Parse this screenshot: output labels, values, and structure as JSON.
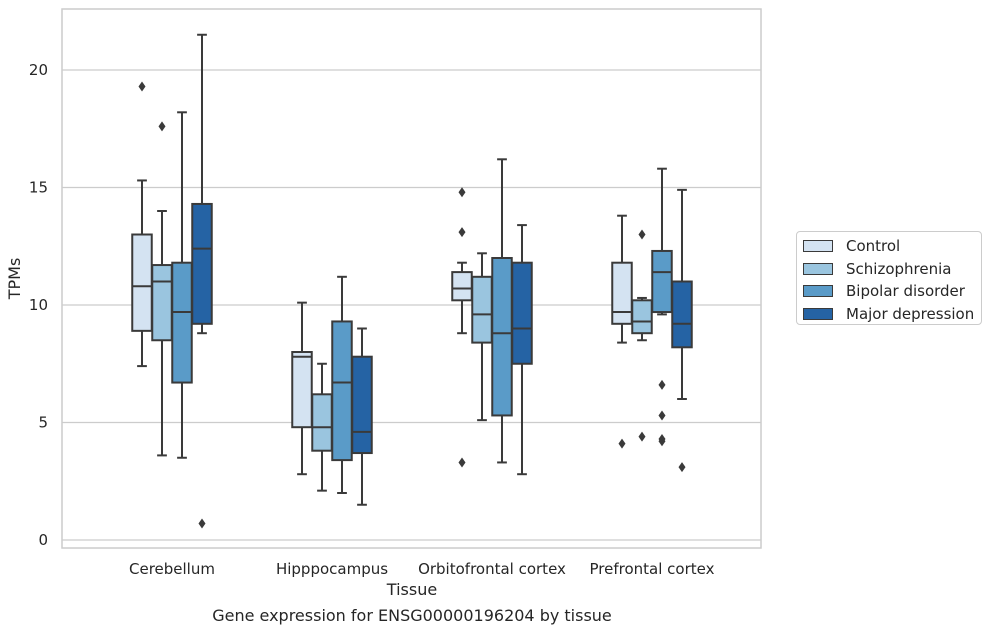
{
  "caption": "Gene expression for ENSG00000196204 by tissue",
  "chart_data": {
    "type": "boxplot",
    "xlabel": "Tissue",
    "ylabel": "TPMs",
    "ylim": [
      -0.3,
      22.4
    ],
    "yticks": [
      0,
      5,
      10,
      15,
      20
    ],
    "grid": "horizontal",
    "legend_placement": "outside-right",
    "categories": [
      "Cerebellum",
      "Hipppocampus",
      "Orbitofrontal cortex",
      "Prefrontal cortex"
    ],
    "series": [
      {
        "name": "Control",
        "color": "#d4e3f2",
        "boxes": [
          {
            "whisker_low": 7.4,
            "q1": 8.9,
            "median": 10.8,
            "q3": 13.0,
            "whisker_high": 15.3,
            "outliers": [
              19.3
            ]
          },
          {
            "whisker_low": 2.8,
            "q1": 4.8,
            "median": 7.8,
            "q3": 8.0,
            "whisker_high": 10.1,
            "outliers": []
          },
          {
            "whisker_low": 8.8,
            "q1": 10.2,
            "median": 10.7,
            "q3": 11.4,
            "whisker_high": 11.8,
            "outliers": [
              14.8,
              13.1,
              3.3
            ]
          },
          {
            "whisker_low": 8.4,
            "q1": 9.2,
            "median": 9.7,
            "q3": 11.8,
            "whisker_high": 13.8,
            "outliers": [
              4.1
            ]
          }
        ]
      },
      {
        "name": "Schizophrenia",
        "color": "#9ac5df",
        "boxes": [
          {
            "whisker_low": 3.6,
            "q1": 8.5,
            "median": 11.0,
            "q3": 11.7,
            "whisker_high": 14.0,
            "outliers": [
              17.6
            ]
          },
          {
            "whisker_low": 2.1,
            "q1": 3.8,
            "median": 4.8,
            "q3": 6.2,
            "whisker_high": 7.5,
            "outliers": []
          },
          {
            "whisker_low": 5.1,
            "q1": 8.4,
            "median": 9.6,
            "q3": 11.2,
            "whisker_high": 12.2,
            "outliers": []
          },
          {
            "whisker_low": 8.5,
            "q1": 8.8,
            "median": 9.3,
            "q3": 10.2,
            "whisker_high": 10.3,
            "outliers": [
              13.0,
              4.4
            ]
          }
        ]
      },
      {
        "name": "Bipolar disorder",
        "color": "#5a9bc8",
        "boxes": [
          {
            "whisker_low": 3.5,
            "q1": 6.7,
            "median": 9.7,
            "q3": 11.8,
            "whisker_high": 18.2,
            "outliers": []
          },
          {
            "whisker_low": 2.0,
            "q1": 3.4,
            "median": 6.7,
            "q3": 9.3,
            "whisker_high": 11.2,
            "outliers": []
          },
          {
            "whisker_low": 3.3,
            "q1": 5.3,
            "median": 8.8,
            "q3": 12.0,
            "whisker_high": 16.2,
            "outliers": []
          },
          {
            "whisker_low": 9.6,
            "q1": 9.7,
            "median": 11.4,
            "q3": 12.3,
            "whisker_high": 15.8,
            "outliers": [
              6.6,
              5.3,
              4.3,
              4.2
            ]
          }
        ]
      },
      {
        "name": "Major depression",
        "color": "#2563a4",
        "boxes": [
          {
            "whisker_low": 8.8,
            "q1": 9.2,
            "median": 12.4,
            "q3": 14.3,
            "whisker_high": 21.5,
            "outliers": [
              0.7
            ]
          },
          {
            "whisker_low": 1.5,
            "q1": 3.7,
            "median": 4.6,
            "q3": 7.8,
            "whisker_high": 9.0,
            "outliers": []
          },
          {
            "whisker_low": 2.8,
            "q1": 7.5,
            "median": 9.0,
            "q3": 11.8,
            "whisker_high": 13.4,
            "outliers": []
          },
          {
            "whisker_low": 6.0,
            "q1": 8.2,
            "median": 9.2,
            "q3": 11.0,
            "whisker_high": 14.9,
            "outliers": [
              3.1
            ]
          }
        ]
      }
    ]
  }
}
